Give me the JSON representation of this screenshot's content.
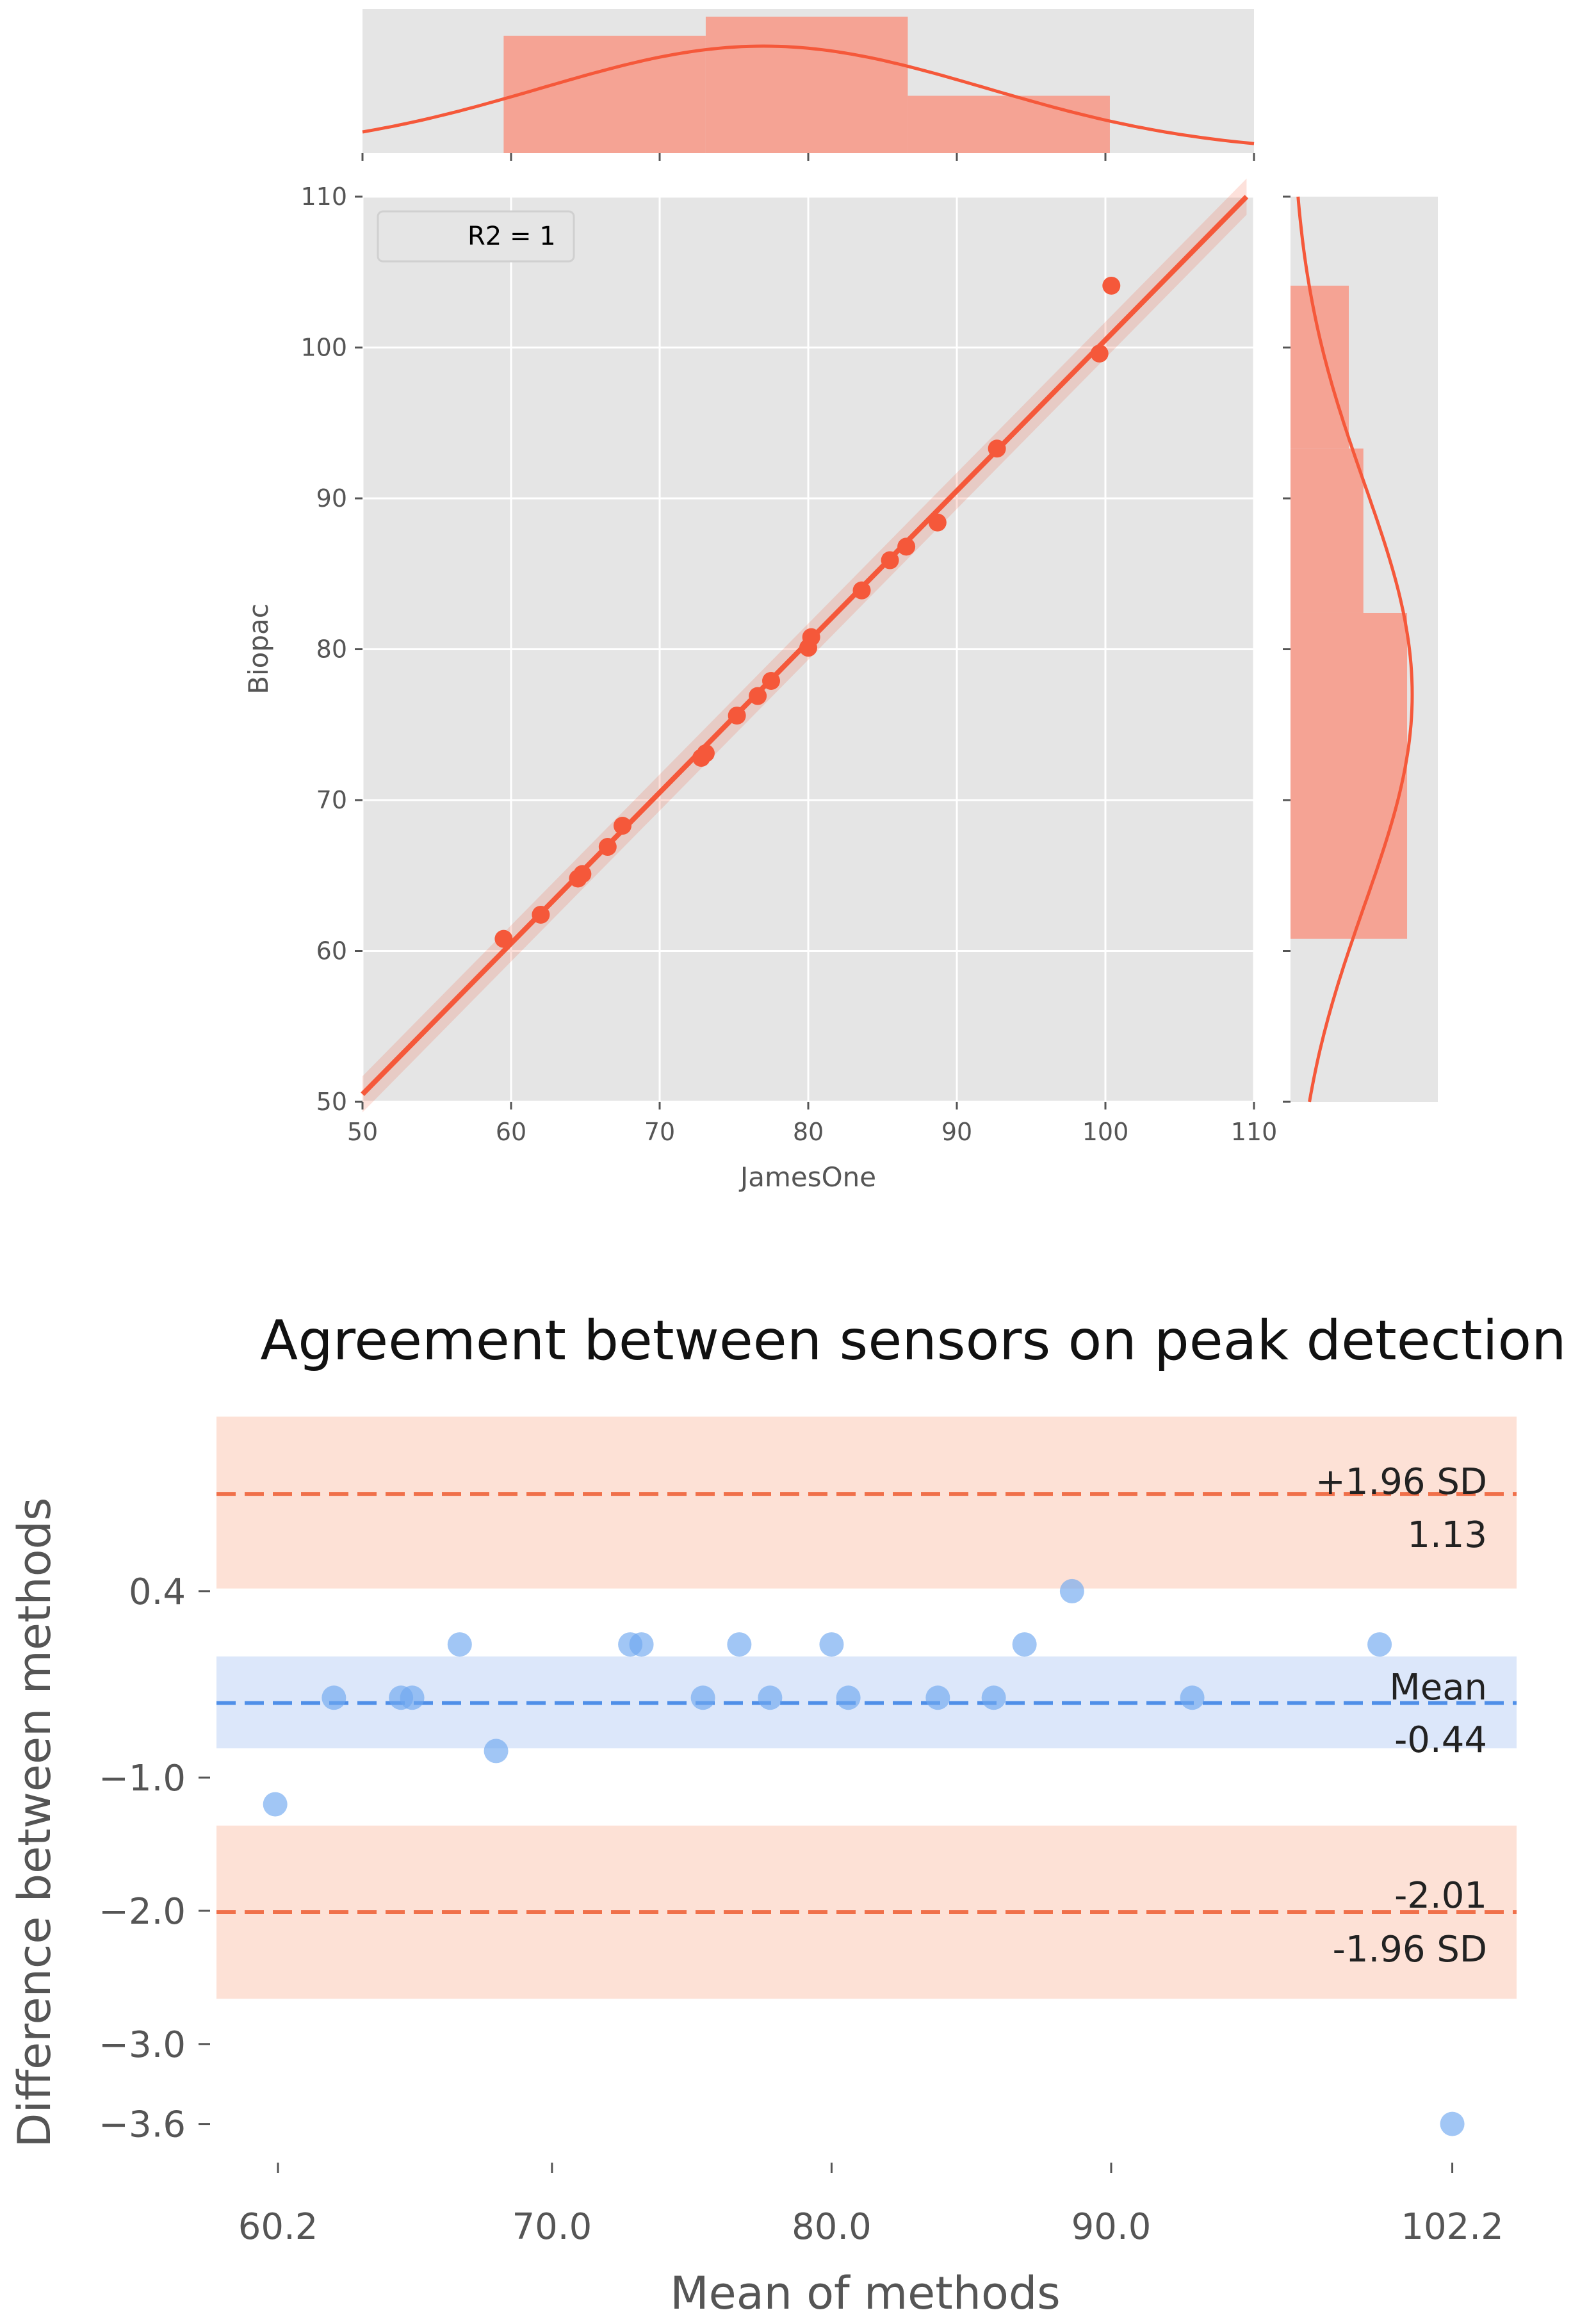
{
  "chart_data": [
    {
      "type": "scatter",
      "subtype": "jointplot-regression",
      "title": "",
      "xlabel": "JamesOne",
      "ylabel": "Biopac",
      "xlim": [
        50,
        110
      ],
      "ylim": [
        50,
        110
      ],
      "xticks": [
        "50",
        "60",
        "70",
        "80",
        "90",
        "100",
        "110"
      ],
      "yticks": [
        "50",
        "60",
        "70",
        "80",
        "90",
        "100",
        "110"
      ],
      "legend": {
        "label": "R2 = 1",
        "position": "top-left"
      },
      "grid": true,
      "color": "#f5583a",
      "points": [
        [
          59.5,
          60.8
        ],
        [
          62.0,
          62.4
        ],
        [
          64.5,
          64.8
        ],
        [
          64.8,
          65.1
        ],
        [
          66.5,
          66.9
        ],
        [
          67.5,
          68.3
        ],
        [
          72.8,
          72.8
        ],
        [
          73.1,
          73.1
        ],
        [
          75.2,
          75.6
        ],
        [
          76.6,
          76.9
        ],
        [
          77.5,
          77.9
        ],
        [
          80.0,
          80.1
        ],
        [
          80.2,
          80.8
        ],
        [
          83.6,
          83.9
        ],
        [
          85.5,
          85.9
        ],
        [
          86.6,
          86.8
        ],
        [
          88.7,
          88.4
        ],
        [
          92.7,
          93.3
        ],
        [
          99.6,
          99.6
        ],
        [
          100.4,
          104.1
        ]
      ],
      "regression": {
        "slope": 1.0,
        "intercept": 0.5
      },
      "top_histogram": {
        "edges": [
          59.5,
          73.1,
          86.7,
          100.3
        ],
        "relative_heights": [
          0.86,
          1.0,
          0.42
        ]
      },
      "right_histogram": {
        "edges": [
          60.8,
          82.4,
          93.3,
          104.1
        ],
        "relative_heights": [
          0.8,
          0.5,
          0.4
        ]
      }
    },
    {
      "type": "scatter",
      "subtype": "bland-altman",
      "title": "Agreement between sensors on peak detection",
      "xlabel": "Mean of methods",
      "ylabel": "Difference between methods",
      "xlim": [
        58.0,
        104.5
      ],
      "ylim": [
        -3.9,
        1.9
      ],
      "xticks": [
        {
          "value": 60.2,
          "label": "60.2"
        },
        {
          "value": 70.0,
          "label": "70.0"
        },
        {
          "value": 80.0,
          "label": "80.0"
        },
        {
          "value": 90.0,
          "label": "90.0"
        },
        {
          "value": 102.2,
          "label": "102.2"
        }
      ],
      "yticks": [
        {
          "value": 0.4,
          "label": "0.4"
        },
        {
          "value": -1.0,
          "label": "−1.0"
        },
        {
          "value": -2.0,
          "label": "−2.0"
        },
        {
          "value": -3.0,
          "label": "−3.0"
        },
        {
          "value": -3.6,
          "label": "−3.6"
        }
      ],
      "grid": false,
      "point_color": "#6fa8f0",
      "points": [
        [
          60.1,
          -1.2
        ],
        [
          62.2,
          -0.4
        ],
        [
          64.6,
          -0.4
        ],
        [
          65.0,
          -0.4
        ],
        [
          66.7,
          0.0
        ],
        [
          68.0,
          -0.8
        ],
        [
          72.8,
          0.0
        ],
        [
          73.2,
          0.0
        ],
        [
          75.4,
          -0.4
        ],
        [
          76.7,
          0.0
        ],
        [
          77.8,
          -0.4
        ],
        [
          80.0,
          0.0
        ],
        [
          80.6,
          -0.4
        ],
        [
          83.8,
          -0.4
        ],
        [
          85.8,
          -0.4
        ],
        [
          86.9,
          0.0
        ],
        [
          88.6,
          0.4
        ],
        [
          92.9,
          -0.4
        ],
        [
          99.6,
          0.0
        ],
        [
          102.2,
          -3.6
        ]
      ],
      "mean": {
        "value": -0.44,
        "label": "Mean",
        "value_label": "-0.44",
        "band": [
          -0.78,
          -0.09
        ],
        "color": "#4f8fe8"
      },
      "upper_loa": {
        "value": 1.13,
        "label": "+1.96 SD",
        "value_label": "1.13",
        "band": [
          0.42,
          1.71
        ],
        "color": "#f0704a"
      },
      "lower_loa": {
        "value": -2.01,
        "label": "-1.96 SD",
        "value_label": "-2.01",
        "band": [
          -2.66,
          -1.36
        ],
        "color": "#f0704a"
      }
    }
  ]
}
